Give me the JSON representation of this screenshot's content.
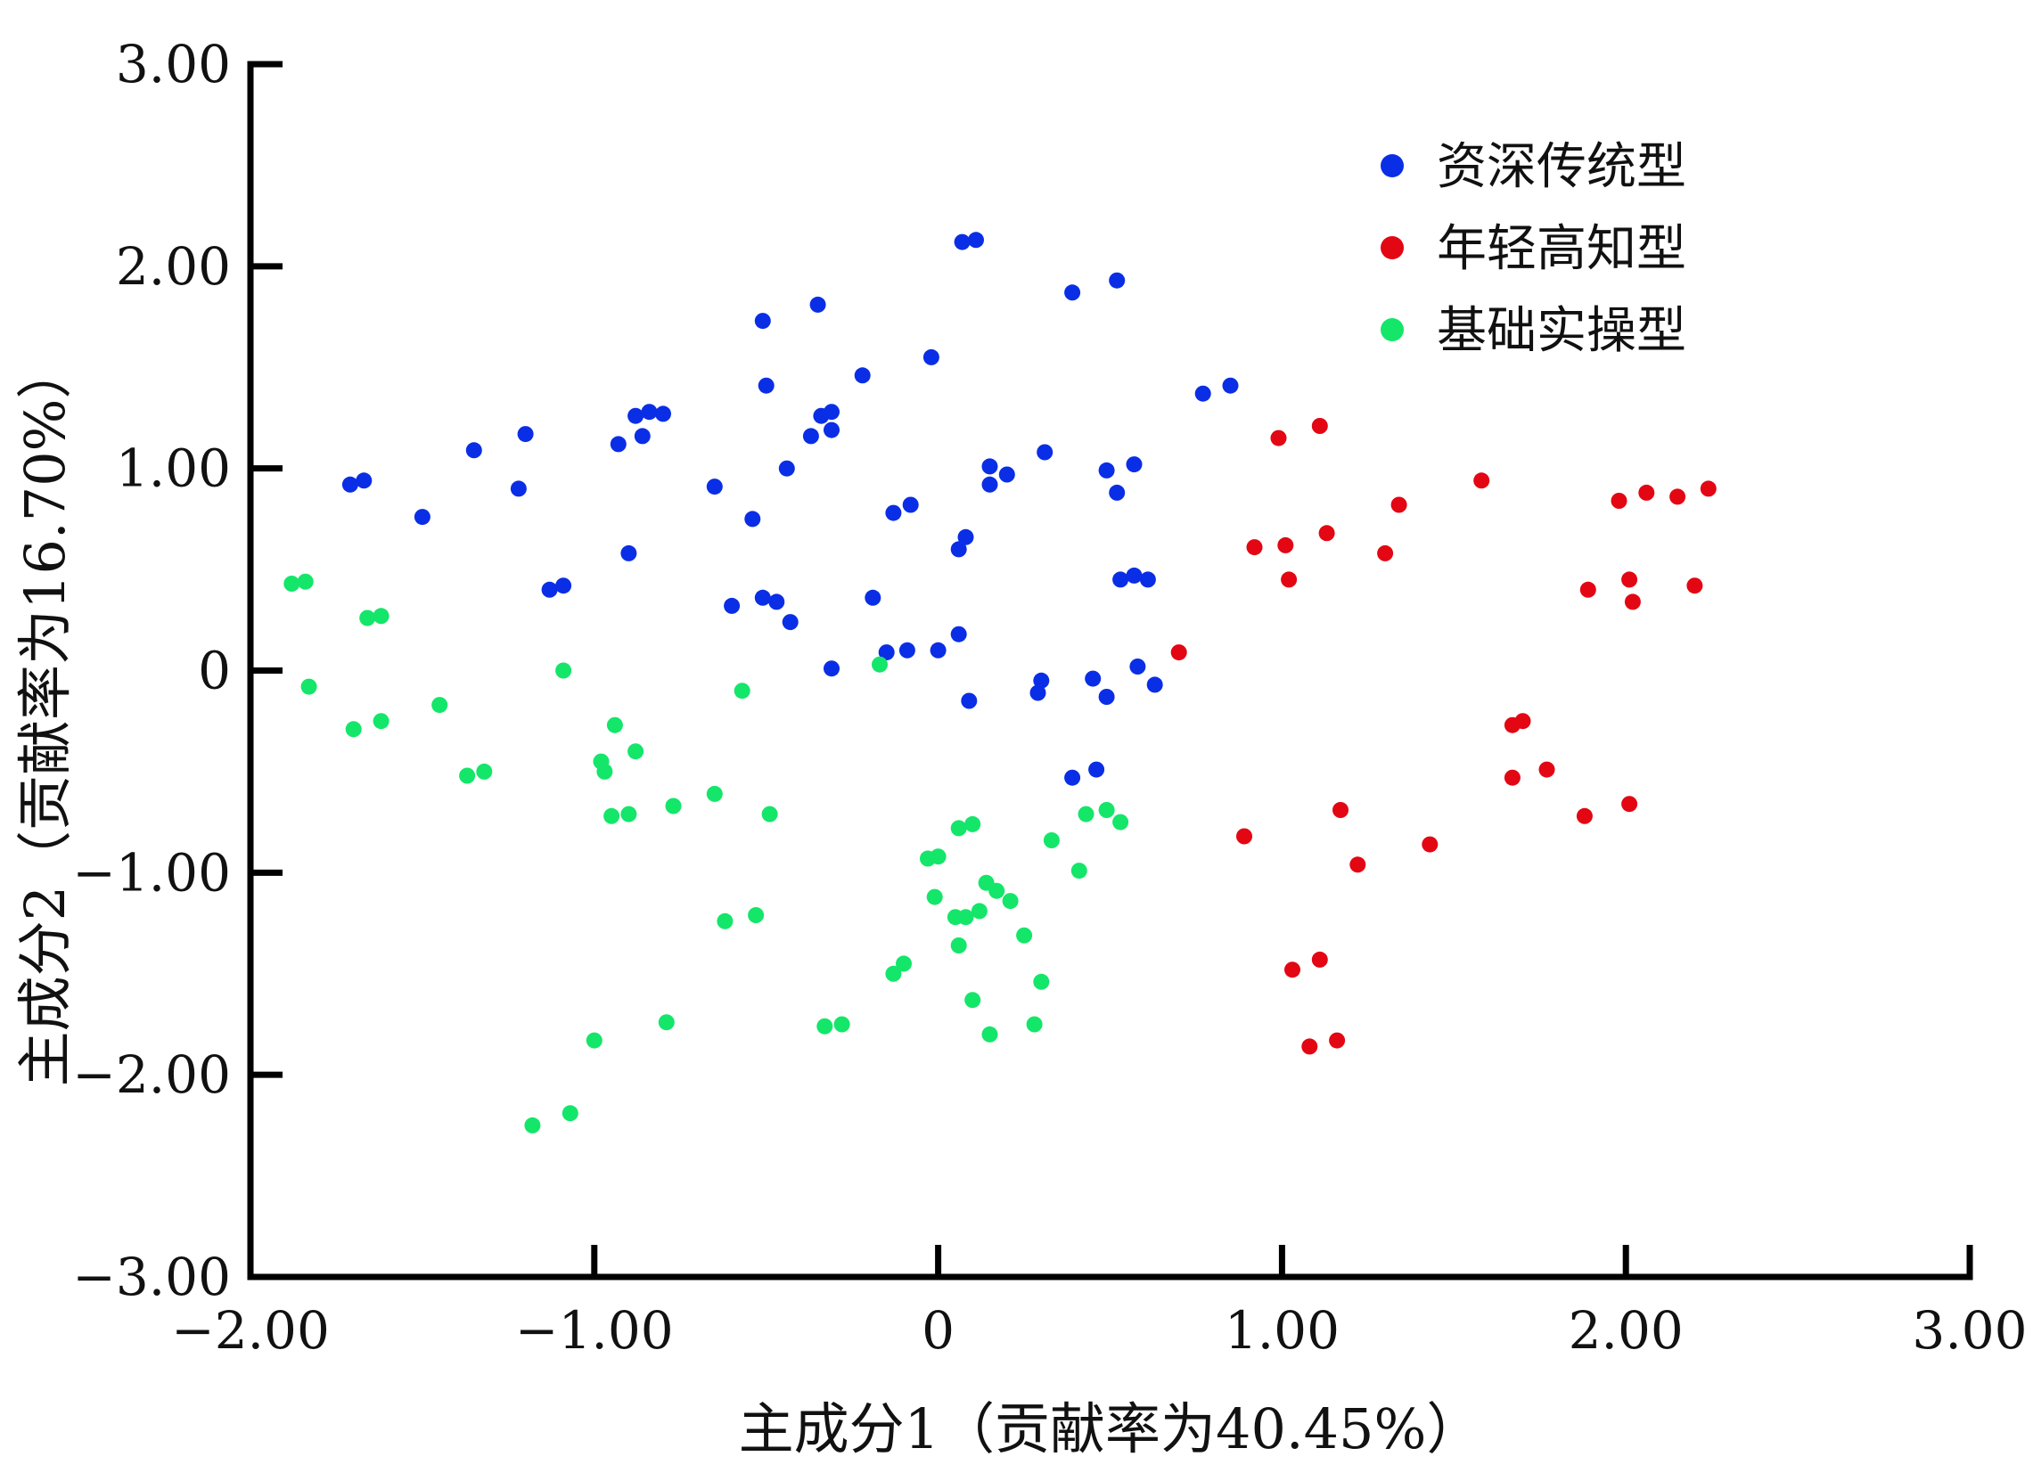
{
  "chart_data": {
    "type": "scatter",
    "xlabel": "主成分1（贡献率为40.45%）",
    "ylabel": "主成分2（贡献率为16.70%）",
    "xlim": [
      -2,
      3
    ],
    "ylim": [
      -3,
      3
    ],
    "x_ticks": [
      -2,
      -1,
      0,
      1,
      2,
      3
    ],
    "x_tick_labels": [
      "−2.00",
      "−1.00",
      "0",
      "1.00",
      "2.00",
      "3.00"
    ],
    "y_ticks": [
      -3,
      -2,
      -1,
      0,
      1,
      2,
      3
    ],
    "y_tick_labels": [
      "−3.00",
      "−2.00",
      "−1.00",
      "0",
      "1.00",
      "2.00",
      "3.00"
    ],
    "grid": false,
    "legend_position": "top-right",
    "series": [
      {
        "name": "资深传统型",
        "color": "#0a2ee6",
        "points": [
          [
            0.07,
            2.12
          ],
          [
            0.11,
            2.13
          ],
          [
            0.39,
            1.87
          ],
          [
            0.52,
            1.93
          ],
          [
            -0.51,
            1.73
          ],
          [
            -0.35,
            1.81
          ],
          [
            -0.22,
            1.46
          ],
          [
            -0.02,
            1.55
          ],
          [
            -0.5,
            1.41
          ],
          [
            0.77,
            1.37
          ],
          [
            0.85,
            1.41
          ],
          [
            -1.71,
            0.92
          ],
          [
            -1.67,
            0.94
          ],
          [
            -1.5,
            0.76
          ],
          [
            -1.35,
            1.09
          ],
          [
            -1.2,
            1.17
          ],
          [
            -1.22,
            0.9
          ],
          [
            -0.93,
            1.12
          ],
          [
            -0.88,
            1.26
          ],
          [
            -0.84,
            1.28
          ],
          [
            -0.8,
            1.27
          ],
          [
            -0.86,
            1.16
          ],
          [
            -0.34,
            1.26
          ],
          [
            -0.31,
            1.28
          ],
          [
            -0.31,
            1.19
          ],
          [
            -0.37,
            1.16
          ],
          [
            -0.44,
            1.0
          ],
          [
            -0.65,
            0.91
          ],
          [
            -0.54,
            0.75
          ],
          [
            -0.13,
            0.78
          ],
          [
            -0.08,
            0.82
          ],
          [
            0.06,
            0.6
          ],
          [
            0.08,
            0.66
          ],
          [
            0.15,
            1.01
          ],
          [
            0.2,
            0.97
          ],
          [
            0.15,
            0.92
          ],
          [
            0.31,
            1.08
          ],
          [
            0.49,
            0.99
          ],
          [
            0.52,
            0.88
          ],
          [
            0.57,
            1.02
          ],
          [
            -0.9,
            0.58
          ],
          [
            -1.13,
            0.4
          ],
          [
            -1.09,
            0.42
          ],
          [
            -0.6,
            0.32
          ],
          [
            -0.51,
            0.36
          ],
          [
            -0.47,
            0.34
          ],
          [
            -0.43,
            0.24
          ],
          [
            -0.19,
            0.36
          ],
          [
            -0.15,
            0.09
          ],
          [
            -0.09,
            0.1
          ],
          [
            0,
            0.1
          ],
          [
            0.06,
            0.18
          ],
          [
            -0.31,
            0.01
          ],
          [
            0.09,
            -0.15
          ],
          [
            0.29,
            -0.11
          ],
          [
            0.3,
            -0.05
          ],
          [
            0.45,
            -0.04
          ],
          [
            0.49,
            -0.13
          ],
          [
            0.53,
            0.45
          ],
          [
            0.57,
            0.47
          ],
          [
            0.61,
            0.45
          ],
          [
            0.58,
            0.02
          ],
          [
            0.63,
            -0.07
          ],
          [
            0.39,
            -0.53
          ],
          [
            0.46,
            -0.49
          ]
        ]
      },
      {
        "name": "年轻高知型",
        "color": "#e30613",
        "points": [
          [
            0.7,
            0.09
          ],
          [
            0.99,
            1.15
          ],
          [
            1.11,
            1.21
          ],
          [
            0.92,
            0.61
          ],
          [
            1.01,
            0.62
          ],
          [
            1.02,
            0.45
          ],
          [
            1.13,
            0.68
          ],
          [
            1.3,
            0.58
          ],
          [
            1.34,
            0.82
          ],
          [
            1.58,
            0.94
          ],
          [
            1.98,
            0.84
          ],
          [
            2.06,
            0.88
          ],
          [
            2.15,
            0.86
          ],
          [
            2.24,
            0.9
          ],
          [
            1.89,
            0.4
          ],
          [
            2.01,
            0.45
          ],
          [
            2.02,
            0.34
          ],
          [
            2.2,
            0.42
          ],
          [
            1.67,
            -0.27
          ],
          [
            1.7,
            -0.25
          ],
          [
            1.67,
            -0.53
          ],
          [
            1.77,
            -0.49
          ],
          [
            1.88,
            -0.72
          ],
          [
            2.01,
            -0.66
          ],
          [
            0.89,
            -0.82
          ],
          [
            1.17,
            -0.69
          ],
          [
            1.22,
            -0.96
          ],
          [
            1.43,
            -0.86
          ],
          [
            1.03,
            -1.48
          ],
          [
            1.11,
            -1.43
          ],
          [
            1.08,
            -1.86
          ],
          [
            1.16,
            -1.83
          ]
        ]
      },
      {
        "name": "基础实操型",
        "color": "#14e66a",
        "points": [
          [
            -1.88,
            0.43
          ],
          [
            -1.84,
            0.44
          ],
          [
            -1.66,
            0.26
          ],
          [
            -1.62,
            0.27
          ],
          [
            -1.83,
            -0.08
          ],
          [
            -1.7,
            -0.29
          ],
          [
            -1.62,
            -0.25
          ],
          [
            -1.45,
            -0.17
          ],
          [
            -1.37,
            -0.52
          ],
          [
            -1.32,
            -0.5
          ],
          [
            -1.09,
            0.0
          ],
          [
            -0.98,
            -0.45
          ],
          [
            -0.97,
            -0.5
          ],
          [
            -0.95,
            -0.72
          ],
          [
            -0.94,
            -0.27
          ],
          [
            -0.9,
            -0.71
          ],
          [
            -0.88,
            -0.4
          ],
          [
            -0.77,
            -0.67
          ],
          [
            -0.65,
            -0.61
          ],
          [
            -0.57,
            -0.1
          ],
          [
            -0.49,
            -0.71
          ],
          [
            -0.62,
            -1.24
          ],
          [
            -0.53,
            -1.21
          ],
          [
            -0.79,
            -1.74
          ],
          [
            -1.0,
            -1.83
          ],
          [
            -1.07,
            -2.19
          ],
          [
            -1.18,
            -2.25
          ],
          [
            -0.33,
            -1.76
          ],
          [
            -0.28,
            -1.75
          ],
          [
            -0.17,
            0.03
          ],
          [
            -0.1,
            -1.45
          ],
          [
            -0.13,
            -1.5
          ],
          [
            -0.03,
            -0.93
          ],
          [
            0.0,
            -0.92
          ],
          [
            -0.01,
            -1.12
          ],
          [
            0.06,
            -0.78
          ],
          [
            0.1,
            -0.76
          ],
          [
            0.05,
            -1.22
          ],
          [
            0.08,
            -1.22
          ],
          [
            0.12,
            -1.19
          ],
          [
            0.14,
            -1.05
          ],
          [
            0.17,
            -1.09
          ],
          [
            0.21,
            -1.14
          ],
          [
            0.06,
            -1.36
          ],
          [
            0.25,
            -1.31
          ],
          [
            0.3,
            -1.54
          ],
          [
            0.28,
            -1.75
          ],
          [
            0.15,
            -1.8
          ],
          [
            0.1,
            -1.63
          ],
          [
            0.33,
            -0.84
          ],
          [
            0.41,
            -0.99
          ],
          [
            0.43,
            -0.71
          ],
          [
            0.49,
            -0.69
          ],
          [
            0.53,
            -0.75
          ]
        ]
      }
    ]
  }
}
